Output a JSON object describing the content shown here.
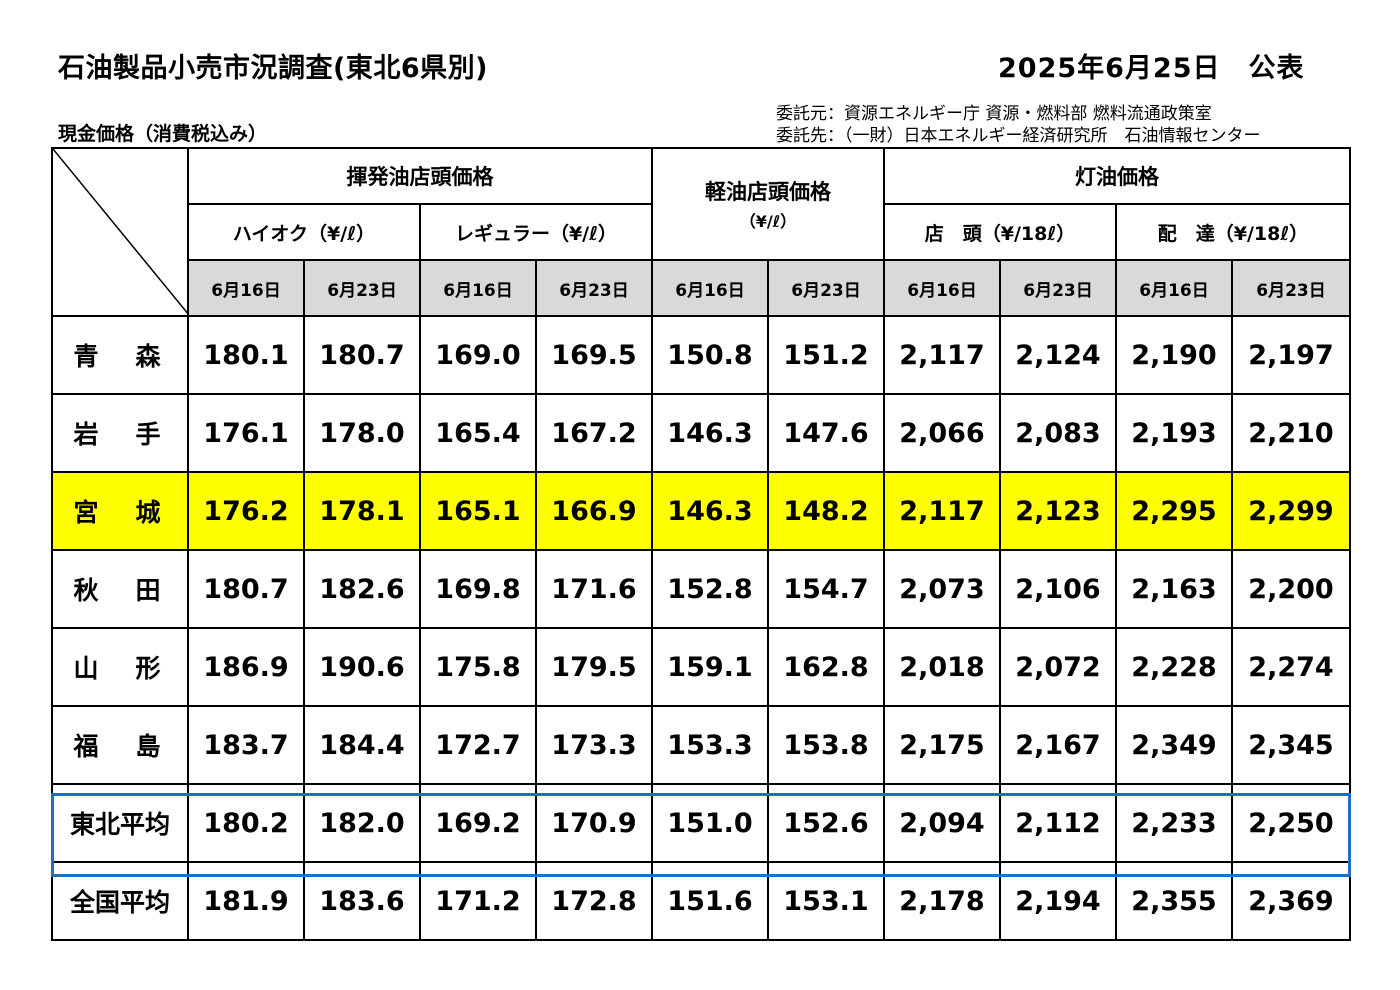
{
  "header": {
    "title": "石油製品小売市況調査(東北6県別)",
    "date": "2025年6月25日　公表",
    "commissioner": "委託元：資源エネルギー庁 資源・燃料部 燃料流通政策室",
    "contractor": "委託先：（一財）日本エネルギー経済研究所　石油情報センター",
    "subtitle": "現金価格（消費税込み）"
  },
  "table": {
    "groups": {
      "gasoline": "揮発油店頭価格",
      "diesel": "軽油店頭価格",
      "diesel_unit": "（¥/ℓ）",
      "kerosene": "灯油価格"
    },
    "subgroups": {
      "high_octane": "ハイオク（¥/ℓ）",
      "regular": "レギュラー（¥/ℓ）",
      "kerosene_store": "店　頭（¥/18ℓ）",
      "kerosene_delivery": "配　達（¥/18ℓ）"
    },
    "dates": [
      "6月16日",
      "6月23日"
    ],
    "rows": [
      {
        "pref": "青　森",
        "v": [
          "180.1",
          "180.7",
          "169.0",
          "169.5",
          "150.8",
          "151.2",
          "2,117",
          "2,124",
          "2,190",
          "2,197"
        ]
      },
      {
        "pref": "岩　手",
        "v": [
          "176.1",
          "178.0",
          "165.4",
          "167.2",
          "146.3",
          "147.6",
          "2,066",
          "2,083",
          "2,193",
          "2,210"
        ]
      },
      {
        "pref": "宮　城",
        "v": [
          "176.2",
          "178.1",
          "165.1",
          "166.9",
          "146.3",
          "148.2",
          "2,117",
          "2,123",
          "2,295",
          "2,299"
        ]
      },
      {
        "pref": "秋　田",
        "v": [
          "180.7",
          "182.6",
          "169.8",
          "171.6",
          "152.8",
          "154.7",
          "2,073",
          "2,106",
          "2,163",
          "2,200"
        ]
      },
      {
        "pref": "山　形",
        "v": [
          "186.9",
          "190.6",
          "175.8",
          "179.5",
          "159.1",
          "162.8",
          "2,018",
          "2,072",
          "2,228",
          "2,274"
        ]
      },
      {
        "pref": "福　島",
        "v": [
          "183.7",
          "184.4",
          "172.7",
          "173.3",
          "153.3",
          "153.8",
          "2,175",
          "2,167",
          "2,349",
          "2,345"
        ]
      },
      {
        "pref": "東北平均",
        "v": [
          "180.2",
          "182.0",
          "169.2",
          "170.9",
          "151.0",
          "152.6",
          "2,094",
          "2,112",
          "2,233",
          "2,250"
        ]
      },
      {
        "pref": "全国平均",
        "v": [
          "181.9",
          "183.6",
          "171.2",
          "172.8",
          "151.6",
          "153.1",
          "2,178",
          "2,194",
          "2,355",
          "2,369"
        ]
      }
    ],
    "highlight_color": "#ffff00",
    "average_box_color": "#1f6fc0"
  }
}
